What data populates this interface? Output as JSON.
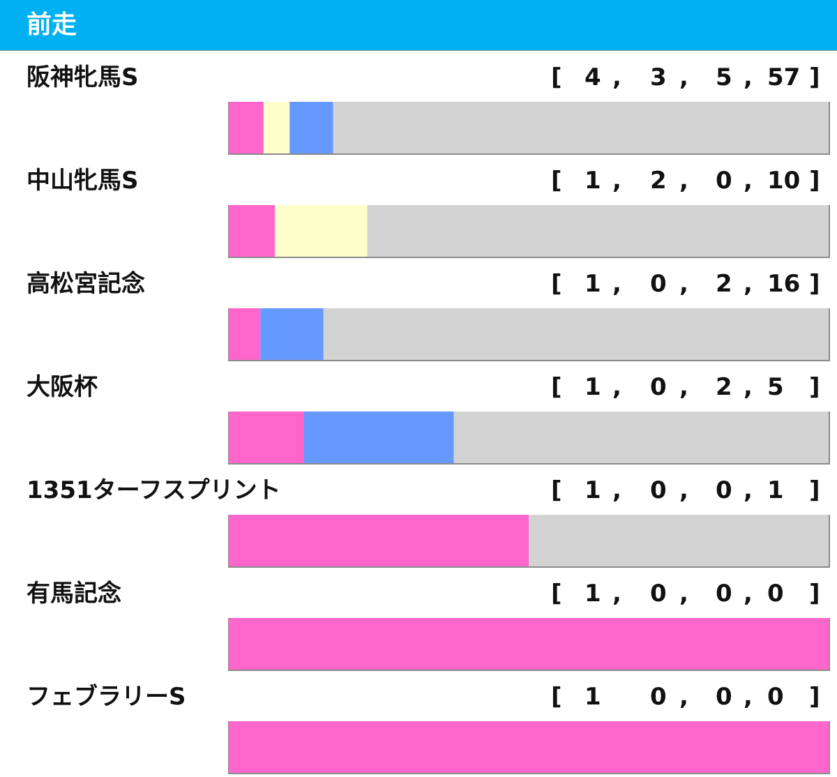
{
  "header": {
    "title": "前走",
    "color": "#00b0f0"
  },
  "colors": {
    "first": "#ff66cc",
    "second": "#ffffcc",
    "third": "#6699ff",
    "other": "#d3d3d3"
  },
  "chart_data": {
    "type": "bar",
    "stacked": true,
    "orientation": "horizontal",
    "title": "前走",
    "categories": [
      "阪神牝馬S",
      "中山牝馬S",
      "高松宮記念",
      "大阪杯",
      "1351ターフスプリント",
      "有馬記念",
      "フェブラリーS"
    ],
    "series": [
      {
        "values": [
          4,
          1,
          1,
          1,
          1,
          1,
          1
        ]
      },
      {
        "values": [
          3,
          2,
          0,
          0,
          0,
          0,
          0
        ]
      },
      {
        "values": [
          5,
          0,
          2,
          2,
          0,
          0,
          0
        ]
      },
      {
        "values": [
          57,
          10,
          16,
          5,
          1,
          0,
          0
        ]
      }
    ],
    "xlim": [
      0,
      1
    ],
    "normalized": true,
    "grid": false,
    "legend": "none"
  },
  "rows": [
    {
      "name": "阪神牝馬S",
      "record": {
        "open": "[",
        "first": "4",
        "c1": ",",
        "second": "3",
        "c2": ",",
        "third": "5",
        "c3": ",",
        "other": "57",
        "close": "]"
      }
    },
    {
      "name": "中山牝馬S",
      "record": {
        "open": "[",
        "first": "1",
        "c1": ",",
        "second": "2",
        "c2": ",",
        "third": "0",
        "c3": ",",
        "other": "10",
        "close": "]"
      }
    },
    {
      "name": "高松宮記念",
      "record": {
        "open": "[",
        "first": "1",
        "c1": ",",
        "second": "0",
        "c2": ",",
        "third": "2",
        "c3": ",",
        "other": "16",
        "close": "]"
      }
    },
    {
      "name": "大阪杯",
      "record": {
        "open": "[",
        "first": "1",
        "c1": ",",
        "second": "0",
        "c2": ",",
        "third": "2",
        "c3": ",",
        "other": "5",
        "close": "]"
      }
    },
    {
      "name": "1351ターフスプリント",
      "record": {
        "open": "[",
        "first": "1",
        "c1": ",",
        "second": "0",
        "c2": ",",
        "third": "0",
        "c3": ",",
        "other": "1",
        "close": "]"
      }
    },
    {
      "name": "有馬記念",
      "record": {
        "open": "[",
        "first": "1",
        "c1": ",",
        "second": "0",
        "c2": ",",
        "third": "0",
        "c3": ",",
        "other": "0",
        "close": "]"
      }
    },
    {
      "name": "フェブラリーS",
      "record": {
        "open": "[",
        "first": "1",
        "c1": "",
        "second": "0",
        "c2": ",",
        "third": "0",
        "c3": ",",
        "other": "0",
        "close": "]"
      }
    }
  ]
}
